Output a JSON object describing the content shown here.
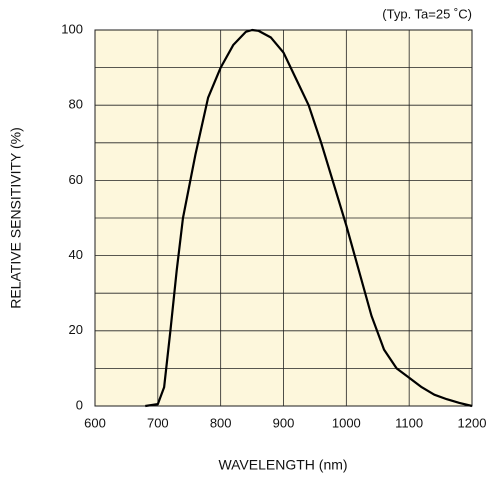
{
  "chart_data": {
    "type": "line",
    "annotation": "(Typ. Ta=25 ˚C)",
    "x_label": "WAVELENGTH (nm)",
    "y_label": "RELATIVE SENSITIVITY (%)",
    "x": [
      680,
      700,
      710,
      720,
      730,
      740,
      760,
      780,
      800,
      820,
      840,
      850,
      860,
      880,
      900,
      920,
      940,
      960,
      980,
      1000,
      1020,
      1040,
      1060,
      1080,
      1100,
      1120,
      1140,
      1160,
      1180,
      1200
    ],
    "series": [
      {
        "name": "Relative sensitivity",
        "color": "#000000",
        "values": [
          0,
          0.5,
          5,
          20,
          36,
          50,
          67,
          82,
          90,
          96,
          99.5,
          100,
          99.8,
          98,
          94,
          87,
          80,
          70,
          59,
          48,
          36,
          24,
          15,
          10,
          7.5,
          5,
          3,
          1.8,
          0.8,
          0
        ]
      }
    ],
    "xlim": [
      600,
      1200
    ],
    "xticks": [
      600,
      700,
      800,
      900,
      1000,
      1100,
      1200
    ],
    "ylim": [
      0,
      100
    ],
    "yticks": [
      0,
      20,
      40,
      60,
      80,
      100
    ],
    "y_minor_grid": [
      10,
      30,
      50,
      70,
      90
    ],
    "grid": true,
    "background": "#fdf7dc"
  }
}
